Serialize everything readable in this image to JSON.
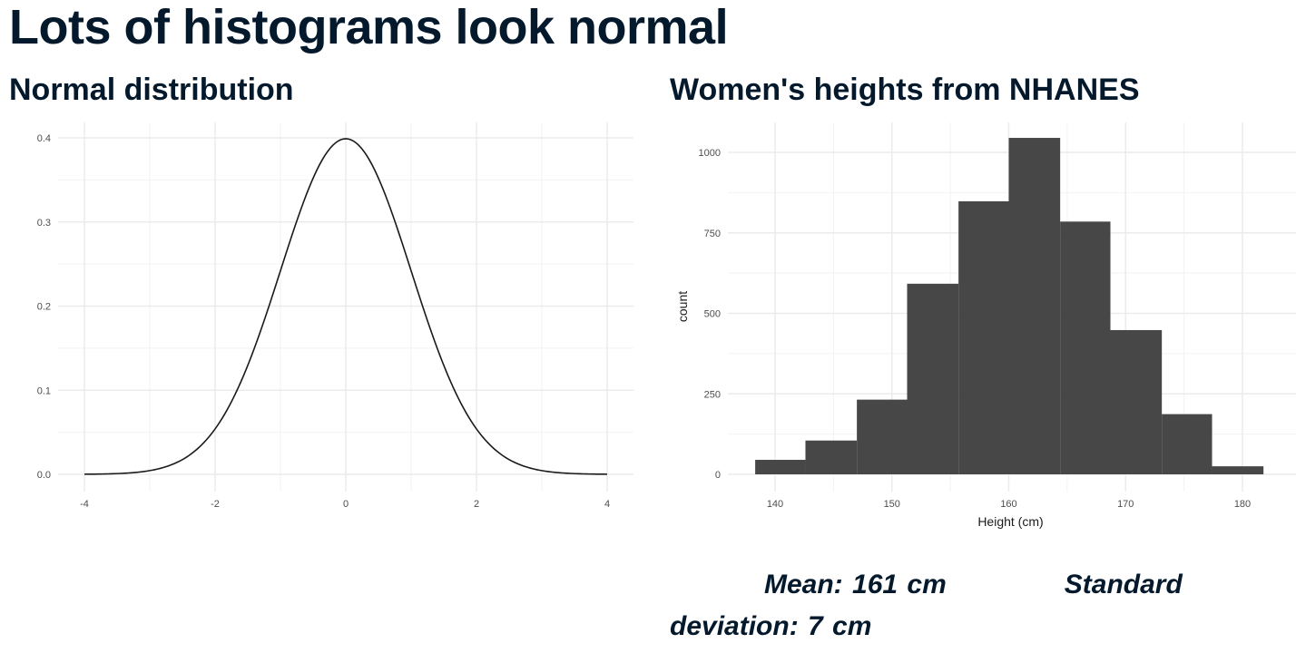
{
  "slide": {
    "title": "Lots of histograms look normal"
  },
  "stats": {
    "mean": "Mean: 161 cm",
    "sd": "Standard deviation: 7 cm"
  },
  "colors": {
    "text": "#05192d",
    "bar_fill": "#474747",
    "curve": "#1a1a1a",
    "grid": "#ebebeb"
  },
  "chart_data": [
    {
      "type": "line",
      "title": "Normal distribution",
      "xlabel": "",
      "ylabel": "",
      "xlim": [
        -4,
        4
      ],
      "ylim": [
        0,
        0.4
      ],
      "x_ticks": [
        -4,
        -2,
        0,
        2,
        4
      ],
      "y_ticks": [
        0.0,
        0.1,
        0.2,
        0.3,
        0.4
      ],
      "x_tick_labels": [
        "-4",
        "-2",
        "0",
        "2",
        "4"
      ],
      "y_tick_labels": [
        "0.0",
        "0.1",
        "0.2",
        "0.3",
        "0.4"
      ],
      "series": [
        {
          "function": "standard normal density",
          "mean": 0,
          "sd": 1,
          "x_range": [
            -4,
            4
          ]
        }
      ],
      "grid": true,
      "legend": "none"
    },
    {
      "type": "bar",
      "subtype": "histogram",
      "title": "Women's heights from NHANES",
      "xlabel": "Height (cm)",
      "ylabel": "count",
      "xlim": [
        138,
        182
      ],
      "ylim": [
        0,
        1050
      ],
      "x_ticks": [
        140,
        150,
        160,
        170,
        180
      ],
      "y_ticks": [
        0,
        250,
        500,
        750,
        1000
      ],
      "x_tick_labels": [
        "140",
        "150",
        "160",
        "170",
        "180"
      ],
      "y_tick_labels": [
        "0",
        "250",
        "500",
        "750",
        "1000"
      ],
      "bins": [
        {
          "start": 138.3,
          "end": 142.6,
          "count": 45
        },
        {
          "start": 142.6,
          "end": 147.0,
          "count": 105
        },
        {
          "start": 147.0,
          "end": 151.3,
          "count": 232
        },
        {
          "start": 151.3,
          "end": 155.7,
          "count": 592
        },
        {
          "start": 155.7,
          "end": 160.0,
          "count": 848
        },
        {
          "start": 160.0,
          "end": 164.4,
          "count": 1045
        },
        {
          "start": 164.4,
          "end": 168.7,
          "count": 785
        },
        {
          "start": 168.7,
          "end": 173.1,
          "count": 448
        },
        {
          "start": 173.1,
          "end": 177.4,
          "count": 187
        },
        {
          "start": 177.4,
          "end": 181.8,
          "count": 25
        }
      ],
      "grid": true,
      "legend": "none"
    }
  ]
}
